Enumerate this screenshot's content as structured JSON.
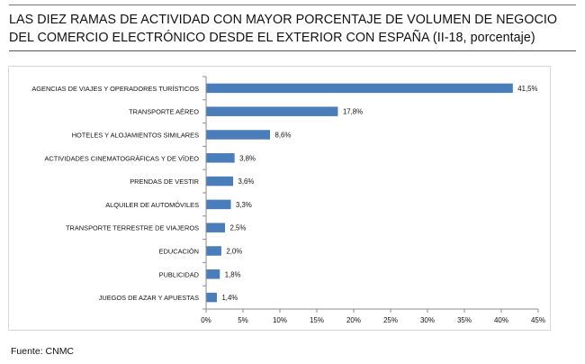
{
  "title": "LAS DIEZ RAMAS DE ACTIVIDAD CON MAYOR PORCENTAJE DE VOLUMEN DE NEGOCIO DEL COMERCIO ELECTRÓNICO DESDE EL EXTERIOR CON ESPAÑA (II-18, porcentaje)",
  "source": "Fuente: CNMC",
  "colors": {
    "bar": "#4a7ebb",
    "axis": "#8c8c8c"
  },
  "chart_data": {
    "type": "bar",
    "orientation": "horizontal",
    "categories": [
      "AGENCIAS DE VIAJES Y OPERADORES TURÍSTICOS",
      "TRANSPORTE AÉREO",
      "HOTELES  Y ALOJAMIENTOS SIMILARES",
      "ACTIVIDADES CINEMATOGRÁFICAS Y DE VÍDEO",
      "PRENDAS DE VESTIR",
      "ALQUILER DE AUTOMÓVILES",
      "TRANSPORTE TERRESTRE DE VIAJEROS",
      "EDUCACIÓN",
      "PUBLICIDAD",
      "JUEGOS DE AZAR Y APUESTAS"
    ],
    "values": [
      41.5,
      17.8,
      8.6,
      3.8,
      3.6,
      3.3,
      2.5,
      2.0,
      1.8,
      1.4
    ],
    "data_labels": [
      "41,5%",
      "17,8%",
      "8,6%",
      "3,8%",
      "3,6%",
      "3,3%",
      "2,5%",
      "2,0%",
      "1,8%",
      "1,4%"
    ],
    "xlim": [
      0,
      45
    ],
    "xticks": [
      0,
      5,
      10,
      15,
      20,
      25,
      30,
      35,
      40,
      45
    ],
    "xtick_labels": [
      "0%",
      "5%",
      "10%",
      "15%",
      "20%",
      "25%",
      "30%",
      "35%",
      "40%",
      "45%"
    ],
    "grid": false,
    "legend": "none"
  }
}
